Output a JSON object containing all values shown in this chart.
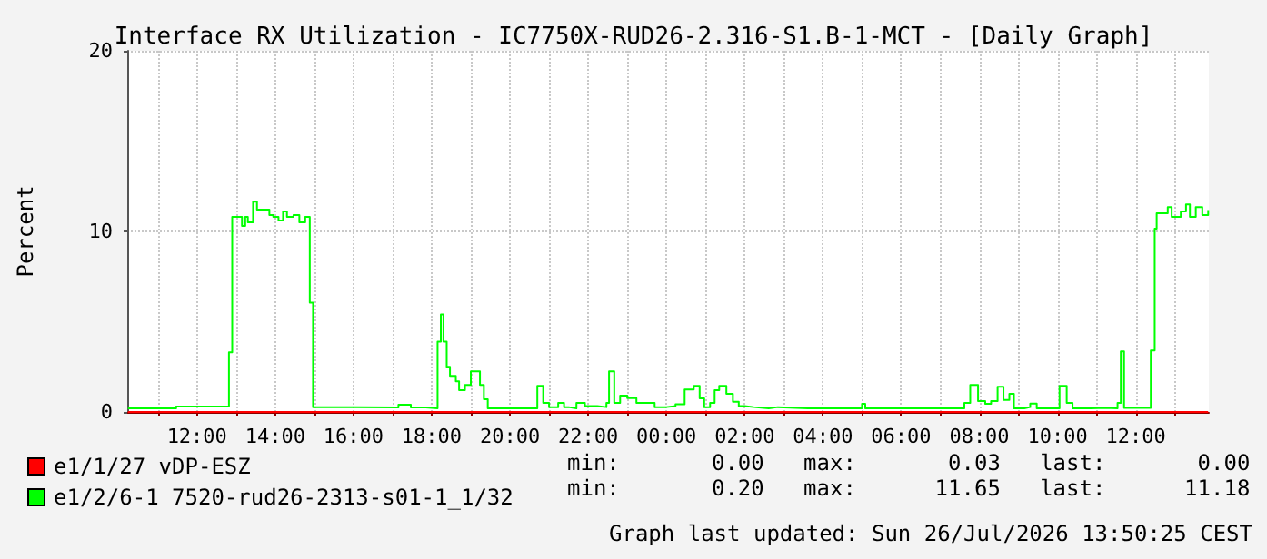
{
  "chart_data": {
    "type": "step",
    "title": "Interface RX Utilization - IC7750X-RUD26-2.316-S1.B-1-MCT - [Daily Graph]",
    "ylabel": "Percent",
    "xlim": [
      "2026-07-25T10:13",
      "2026-07-26T13:52"
    ],
    "ylim": [
      0,
      20
    ],
    "yticks": [
      0,
      10,
      20
    ],
    "xticks": [
      {
        "value": "2026-07-25T11:00",
        "label": null
      },
      {
        "value": "2026-07-25T12:00",
        "label": "12:00"
      },
      {
        "value": "2026-07-25T13:00",
        "label": null
      },
      {
        "value": "2026-07-25T14:00",
        "label": "14:00"
      },
      {
        "value": "2026-07-25T15:00",
        "label": null
      },
      {
        "value": "2026-07-25T16:00",
        "label": "16:00"
      },
      {
        "value": "2026-07-25T17:00",
        "label": null
      },
      {
        "value": "2026-07-25T18:00",
        "label": "18:00"
      },
      {
        "value": "2026-07-25T19:00",
        "label": null
      },
      {
        "value": "2026-07-25T20:00",
        "label": "20:00"
      },
      {
        "value": "2026-07-25T21:00",
        "label": null
      },
      {
        "value": "2026-07-25T22:00",
        "label": "22:00"
      },
      {
        "value": "2026-07-25T23:00",
        "label": null
      },
      {
        "value": "2026-07-26T00:00",
        "label": "00:00"
      },
      {
        "value": "2026-07-26T01:00",
        "label": null
      },
      {
        "value": "2026-07-26T02:00",
        "label": "02:00"
      },
      {
        "value": "2026-07-26T03:00",
        "label": null
      },
      {
        "value": "2026-07-26T04:00",
        "label": "04:00"
      },
      {
        "value": "2026-07-26T05:00",
        "label": null
      },
      {
        "value": "2026-07-26T06:00",
        "label": "06:00"
      },
      {
        "value": "2026-07-26T07:00",
        "label": null
      },
      {
        "value": "2026-07-26T08:00",
        "label": "08:00"
      },
      {
        "value": "2026-07-26T09:00",
        "label": null
      },
      {
        "value": "2026-07-26T10:00",
        "label": "10:00"
      },
      {
        "value": "2026-07-26T11:00",
        "label": null
      },
      {
        "value": "2026-07-26T12:00",
        "label": "12:00"
      },
      {
        "value": "2026-07-26T13:00",
        "label": null
      }
    ],
    "grid": true,
    "legend": "bottom left",
    "marker": "none",
    "series": [
      {
        "name": "e1/1/27 vDP-ESZ",
        "color": "#ff0000",
        "x": [
          "2026-07-25T10:14",
          "2026-07-26T13:51"
        ],
        "values": [
          0,
          0
        ]
      },
      {
        "name": "e1/2/6-1 7520-rud26-2313-s01-1_1/32",
        "color": "#00ff00",
        "x": [
          "2026-07-25T10:14",
          "2026-07-25T11:00",
          "2026-07-25T11:28",
          "2026-07-25T12:49",
          "2026-07-25T12:54",
          "2026-07-25T13:05",
          "2026-07-25T13:09",
          "2026-07-25T13:14",
          "2026-07-25T13:18",
          "2026-07-25T13:26",
          "2026-07-25T13:32",
          "2026-07-25T13:42",
          "2026-07-25T13:51",
          "2026-07-25T13:57",
          "2026-07-25T14:05",
          "2026-07-25T14:12",
          "2026-07-25T14:18",
          "2026-07-25T14:28",
          "2026-07-25T14:37",
          "2026-07-25T14:46",
          "2026-07-25T14:53",
          "2026-07-25T14:58",
          "2026-07-25T16:05",
          "2026-07-25T17:09",
          "2026-07-25T17:28",
          "2026-07-25T17:51",
          "2026-07-25T18:09",
          "2026-07-25T18:14",
          "2026-07-25T18:18",
          "2026-07-25T18:23",
          "2026-07-25T18:28",
          "2026-07-25T18:37",
          "2026-07-25T18:42",
          "2026-07-25T18:51",
          "2026-07-25T19:00",
          "2026-07-25T19:09",
          "2026-07-25T19:14",
          "2026-07-25T19:20",
          "2026-07-25T19:26",
          "2026-07-25T20:32",
          "2026-07-25T20:42",
          "2026-07-25T20:51",
          "2026-07-25T21:00",
          "2026-07-25T21:14",
          "2026-07-25T21:23",
          "2026-07-25T21:30",
          "2026-07-25T21:42",
          "2026-07-25T21:55",
          "2026-07-25T22:14",
          "2026-07-25T22:28",
          "2026-07-25T22:32",
          "2026-07-25T22:40",
          "2026-07-25T22:49",
          "2026-07-25T23:00",
          "2026-07-25T23:14",
          "2026-07-25T23:28",
          "2026-07-25T23:42",
          "2026-07-26T00:00",
          "2026-07-26T00:14",
          "2026-07-26T00:28",
          "2026-07-26T00:42",
          "2026-07-26T00:51",
          "2026-07-26T00:58",
          "2026-07-26T01:07",
          "2026-07-26T01:14",
          "2026-07-26T01:21",
          "2026-07-26T01:32",
          "2026-07-26T01:42",
          "2026-07-26T01:51",
          "2026-07-26T02:00",
          "2026-07-26T02:14",
          "2026-07-26T02:37",
          "2026-07-26T02:51",
          "2026-07-26T03:37",
          "2026-07-26T04:05",
          "2026-07-26T05:00",
          "2026-07-26T05:05",
          "2026-07-26T06:23",
          "2026-07-26T07:32",
          "2026-07-26T07:37",
          "2026-07-26T07:46",
          "2026-07-26T07:58",
          "2026-07-26T08:09",
          "2026-07-26T08:18",
          "2026-07-26T08:28",
          "2026-07-26T08:37",
          "2026-07-26T08:46",
          "2026-07-26T08:53",
          "2026-07-26T09:09",
          "2026-07-26T09:18",
          "2026-07-26T09:28",
          "2026-07-26T10:03",
          "2026-07-26T10:14",
          "2026-07-26T10:23",
          "2026-07-26T10:51",
          "2026-07-26T11:14",
          "2026-07-26T11:32",
          "2026-07-26T11:37",
          "2026-07-26T11:42",
          "2026-07-26T12:00",
          "2026-07-26T12:23",
          "2026-07-26T12:29",
          "2026-07-26T12:32",
          "2026-07-26T12:49",
          "2026-07-26T12:55",
          "2026-07-26T13:05",
          "2026-07-26T13:09",
          "2026-07-26T13:17",
          "2026-07-26T13:23",
          "2026-07-26T13:32",
          "2026-07-26T13:42",
          "2026-07-26T13:51"
        ],
        "values": [
          0.2,
          0.2,
          0.3,
          3.3,
          10.8,
          10.8,
          10.3,
          10.8,
          10.5,
          11.65,
          11.2,
          11.2,
          10.9,
          10.8,
          10.6,
          11.1,
          10.8,
          10.9,
          10.5,
          10.8,
          6.05,
          0.27,
          0.25,
          0.4,
          0.25,
          0.2,
          3.9,
          5.4,
          3.9,
          2.5,
          2.0,
          1.7,
          1.2,
          1.5,
          2.25,
          2.25,
          1.5,
          0.7,
          0.2,
          0.2,
          1.45,
          0.5,
          0.27,
          0.5,
          0.27,
          0.2,
          0.5,
          0.33,
          0.27,
          0.5,
          2.25,
          0.5,
          0.9,
          0.77,
          0.5,
          0.5,
          0.27,
          0.33,
          0.43,
          1.25,
          1.45,
          0.75,
          0.27,
          0.5,
          1.2,
          1.45,
          1.0,
          0.57,
          0.33,
          0.27,
          0.2,
          0.27,
          0.2,
          0.2,
          0.2,
          0.45,
          0.2,
          0.2,
          0.2,
          0.5,
          1.5,
          0.6,
          0.45,
          0.6,
          1.4,
          0.67,
          1.0,
          0.2,
          0.27,
          0.47,
          0.2,
          1.45,
          0.5,
          0.2,
          0.23,
          0.2,
          0.5,
          3.35,
          0.23,
          0.23,
          3.4,
          10.15,
          11.0,
          11.35,
          10.8,
          10.8,
          11.1,
          11.5,
          10.8,
          11.35,
          10.9,
          11.18
        ]
      }
    ],
    "annotations": [
      "min:       0.00   max:       0.03   last:       0.00",
      "min:       0.20   max:      11.65   last:      11.18",
      "Graph last updated: Sun 26/Jul/2026 13:50:25 CEST"
    ]
  }
}
